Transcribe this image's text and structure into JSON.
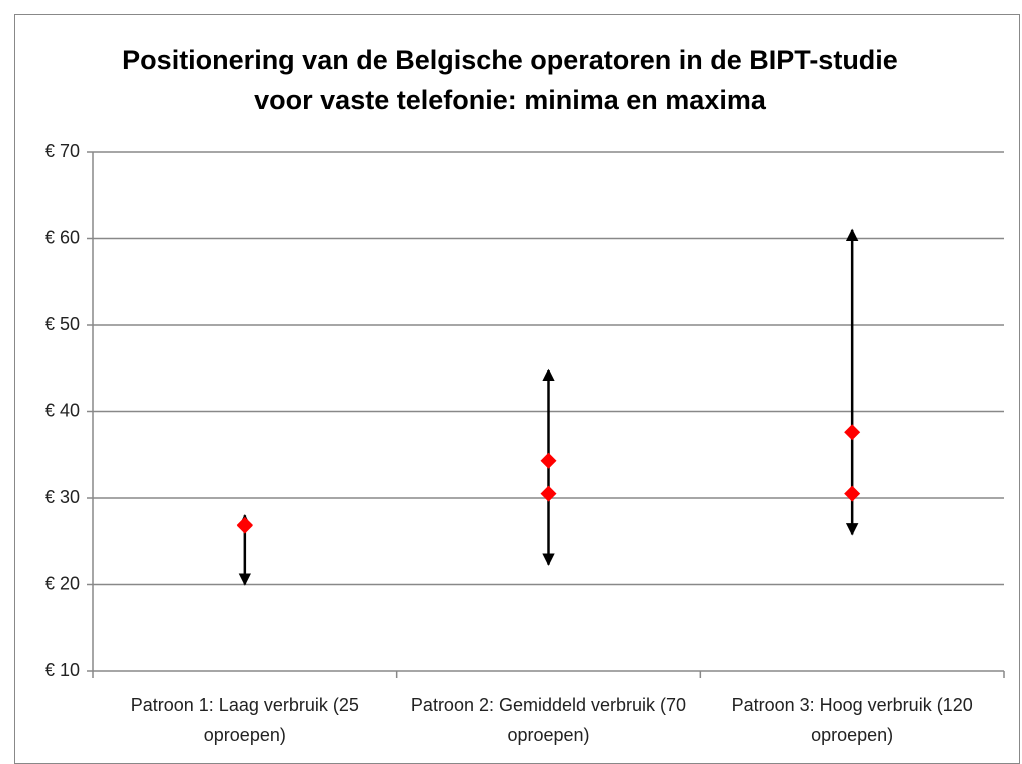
{
  "chart_data": {
    "type": "range",
    "title": "Positionering van de Belgische operatoren in de BIPT-studie voor vaste telefonie: minima en maxima",
    "categories": [
      "Patroon 1: Laag verbruik (25 oproepen)",
      "Patroon 2: Gemiddeld verbruik (70 oproepen)",
      "Patroon 3: Hoog verbruik (120 oproepen)"
    ],
    "low": [
      20.0,
      22.3,
      25.8
    ],
    "high": [
      28.0,
      44.8,
      61.0
    ],
    "range_color": "#000000",
    "series": [
      {
        "color": "#ff0000",
        "values": [
          26.8,
          30.5,
          30.5
        ]
      },
      {
        "color": "#ff0000",
        "values": [
          26.9,
          34.3,
          37.6
        ]
      }
    ],
    "ylim": [
      10,
      70
    ],
    "yticks": [
      {
        "value": 10,
        "label": "€ 10"
      },
      {
        "value": 20,
        "label": "€ 20"
      },
      {
        "value": 30,
        "label": "€ 30"
      },
      {
        "value": 40,
        "label": "€ 40"
      },
      {
        "value": 50,
        "label": "€ 50"
      },
      {
        "value": 60,
        "label": "€ 60"
      },
      {
        "value": 70,
        "label": "€ 70"
      }
    ],
    "grid": true
  }
}
